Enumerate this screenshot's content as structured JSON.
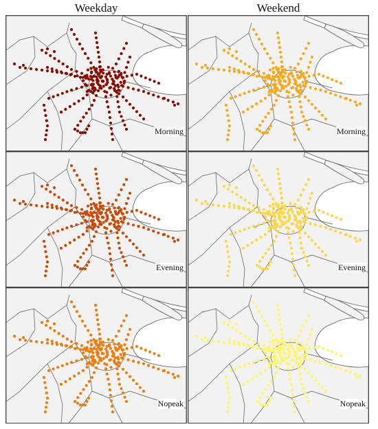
{
  "columns": [
    "Weekday",
    "Weekend"
  ],
  "rows": [
    "Morning",
    "Evening",
    "Nopeak"
  ],
  "colors": {
    "Weekday": {
      "Morning": "#8b0b00",
      "Evening": "#cc4a08",
      "Nopeak": "#ee7d0c"
    },
    "Weekend": {
      "Morning": "#f8a81b",
      "Evening": "#fcd74a",
      "Nopeak": "#fdf56c"
    }
  },
  "land_color": "#f2f2f2",
  "border_color": "#555555"
}
